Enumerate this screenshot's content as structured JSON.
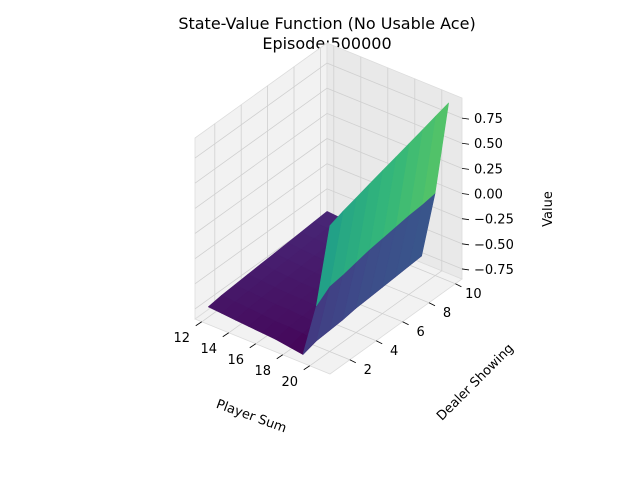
{
  "chart_data": {
    "type": "surface3d",
    "title": "State-Value Function (No Usable Ace)",
    "subtitle": "Episode:500000",
    "xlabel": "Player Sum",
    "ylabel": "Dealer Showing",
    "zlabel": "Value",
    "x": [
      12,
      13,
      14,
      15,
      16,
      17,
      18,
      19,
      20,
      21
    ],
    "y": [
      1,
      2,
      3,
      4,
      5,
      6,
      7,
      8,
      9,
      10
    ],
    "xlim": [
      11.5,
      21.5
    ],
    "ylim": [
      0.5,
      10.5
    ],
    "zlim": [
      -0.85,
      0.95
    ],
    "xticks": [
      "12",
      "14",
      "16",
      "18",
      "20"
    ],
    "yticks": [
      "2",
      "4",
      "6",
      "8",
      "10"
    ],
    "zticks": [
      "−0.75",
      "−0.50",
      "−0.25",
      "0.00",
      "0.25",
      "0.50",
      "0.75"
    ],
    "colormap": "viridis",
    "grid": true,
    "z_rows_by_dealer": [
      [
        -0.75,
        -0.76,
        -0.77,
        -0.78,
        -0.79,
        -0.8,
        -0.82,
        -0.84,
        -0.3,
        0.55
      ],
      [
        -0.73,
        -0.74,
        -0.75,
        -0.76,
        -0.77,
        -0.77,
        -0.78,
        -0.8,
        -0.2,
        0.6
      ],
      [
        -0.72,
        -0.73,
        -0.74,
        -0.75,
        -0.75,
        -0.76,
        -0.77,
        -0.79,
        -0.18,
        0.64
      ],
      [
        -0.71,
        -0.72,
        -0.73,
        -0.74,
        -0.74,
        -0.75,
        -0.76,
        -0.78,
        -0.15,
        0.68
      ],
      [
        -0.7,
        -0.71,
        -0.72,
        -0.73,
        -0.73,
        -0.74,
        -0.75,
        -0.76,
        -0.12,
        0.72
      ],
      [
        -0.69,
        -0.7,
        -0.71,
        -0.72,
        -0.72,
        -0.73,
        -0.74,
        -0.75,
        -0.1,
        0.76
      ],
      [
        -0.68,
        -0.69,
        -0.7,
        -0.71,
        -0.71,
        -0.72,
        -0.73,
        -0.74,
        -0.08,
        0.8
      ],
      [
        -0.67,
        -0.68,
        -0.69,
        -0.7,
        -0.7,
        -0.71,
        -0.72,
        -0.73,
        -0.06,
        0.84
      ],
      [
        -0.66,
        -0.67,
        -0.68,
        -0.69,
        -0.69,
        -0.7,
        -0.71,
        -0.72,
        -0.05,
        0.88
      ],
      [
        -0.65,
        -0.66,
        -0.67,
        -0.68,
        -0.68,
        -0.69,
        -0.7,
        -0.71,
        -0.03,
        0.92
      ]
    ]
  }
}
